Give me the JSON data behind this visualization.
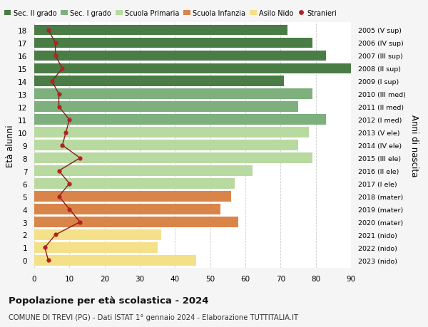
{
  "ages": [
    18,
    17,
    16,
    15,
    14,
    13,
    12,
    11,
    10,
    9,
    8,
    7,
    6,
    5,
    4,
    3,
    2,
    1,
    0
  ],
  "right_labels": [
    "2005 (V sup)",
    "2006 (IV sup)",
    "2007 (III sup)",
    "2008 (II sup)",
    "2009 (I sup)",
    "2010 (III med)",
    "2011 (II med)",
    "2012 (I med)",
    "2013 (V ele)",
    "2014 (IV ele)",
    "2015 (III ele)",
    "2016 (II ele)",
    "2017 (I ele)",
    "2018 (mater)",
    "2019 (mater)",
    "2020 (mater)",
    "2021 (nido)",
    "2022 (nido)",
    "2023 (nido)"
  ],
  "bar_values": [
    72,
    79,
    83,
    90,
    71,
    79,
    75,
    83,
    78,
    75,
    79,
    62,
    57,
    56,
    53,
    58,
    36,
    35,
    46
  ],
  "stranieri": [
    4,
    6,
    6,
    8,
    5,
    7,
    7,
    10,
    9,
    8,
    13,
    7,
    10,
    7,
    10,
    13,
    6,
    3,
    4
  ],
  "bar_colors": [
    "#4a7c45",
    "#4a7c45",
    "#4a7c45",
    "#4a7c45",
    "#4a7c45",
    "#7db07d",
    "#7db07d",
    "#7db07d",
    "#b8d9a0",
    "#b8d9a0",
    "#b8d9a0",
    "#b8d9a0",
    "#b8d9a0",
    "#d9854a",
    "#d9854a",
    "#d9854a",
    "#f5e08a",
    "#f5e08a",
    "#f5e08a"
  ],
  "legend_labels": [
    "Sec. II grado",
    "Sec. I grado",
    "Scuola Primaria",
    "Scuola Infanzia",
    "Asilo Nido",
    "Stranieri"
  ],
  "legend_colors": [
    "#4a7c45",
    "#7db07d",
    "#b8d9a0",
    "#d9854a",
    "#f5e08a",
    "#b22222"
  ],
  "stranieri_color": "#b22222",
  "stranieri_line_color": "#8b1a1a",
  "ylabel": "Età alunni",
  "right_ylabel": "Anni di nascita",
  "title": "Popolazione per età scolastica - 2024",
  "subtitle": "COMUNE DI TREVI (PG) - Dati ISTAT 1° gennaio 2024 - Elaborazione TUTTITALIA.IT",
  "xlim": [
    0,
    90
  ],
  "xticks": [
    0,
    10,
    20,
    30,
    40,
    50,
    60,
    70,
    80,
    90
  ],
  "background_color": "#f5f5f5",
  "bar_background": "#ffffff",
  "grid_color": "#cccccc"
}
